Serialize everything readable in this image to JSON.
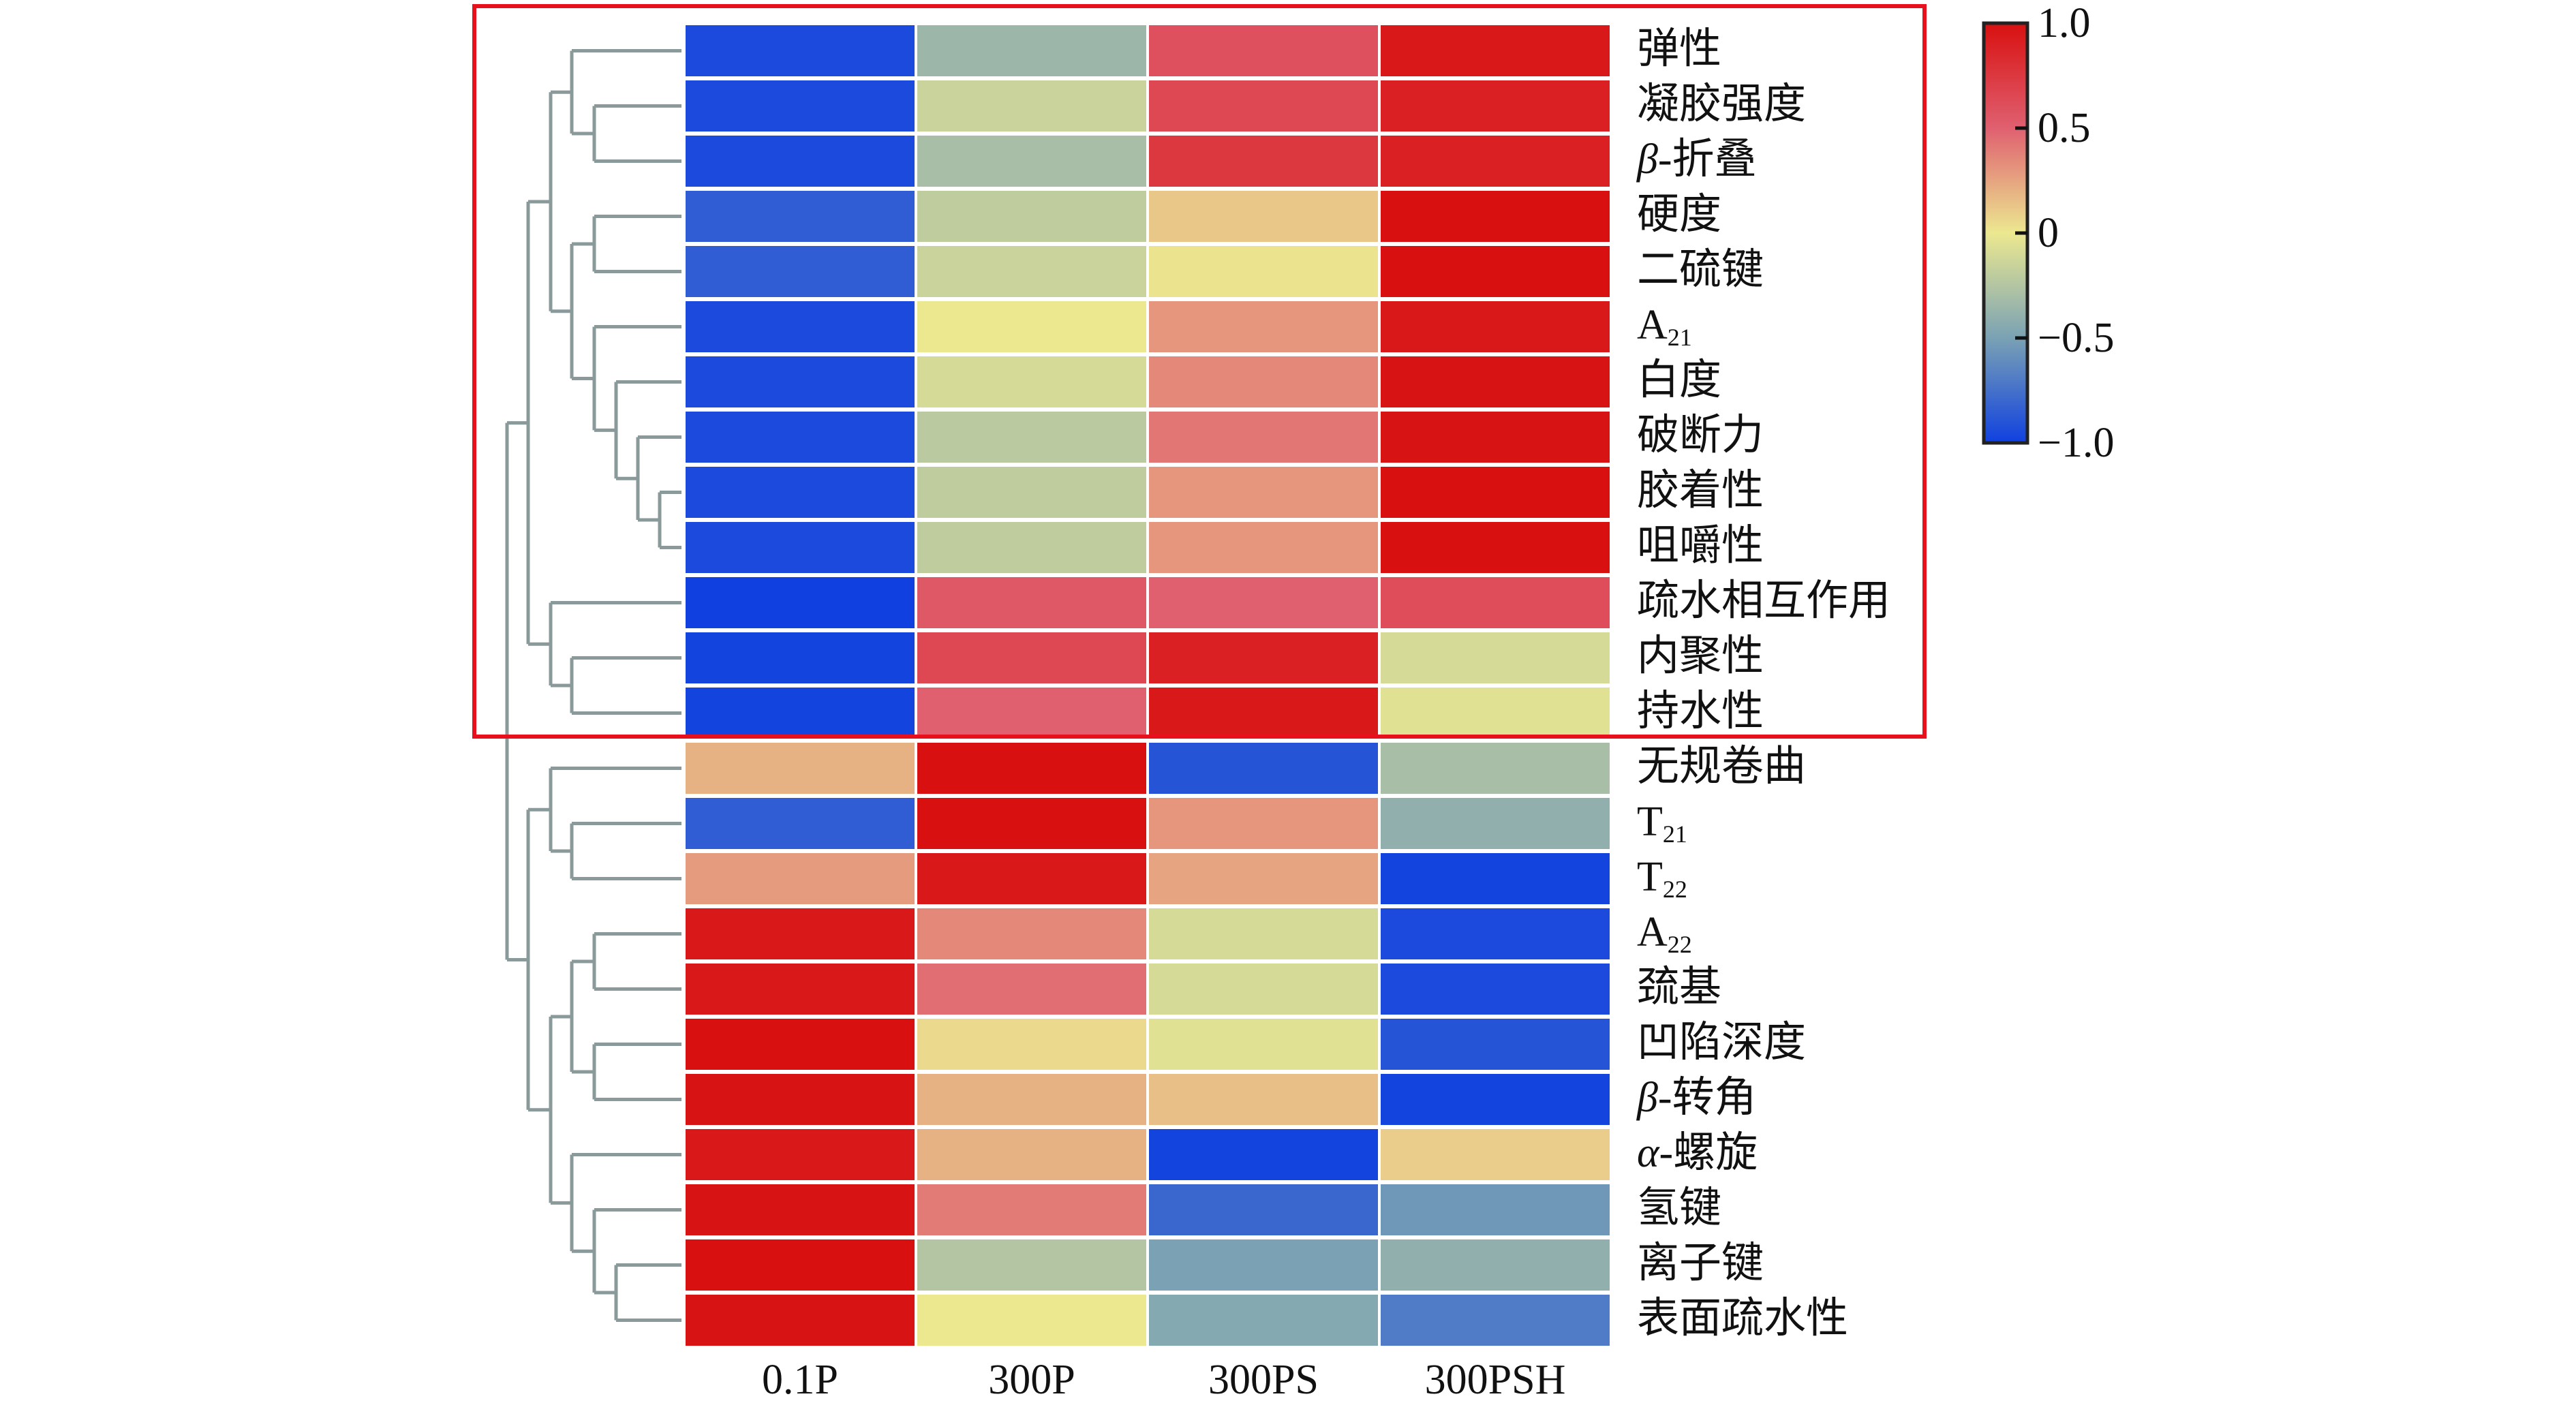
{
  "chart_data": {
    "type": "heatmap",
    "title": "",
    "columns": [
      "0.1P",
      "300P",
      "300PS",
      "300PSH"
    ],
    "rows": [
      {
        "label": "弹性",
        "values": [
          -0.95,
          -0.35,
          0.6,
          0.95
        ]
      },
      {
        "label": "凝胶强度",
        "values": [
          -0.95,
          -0.15,
          0.65,
          0.9
        ]
      },
      {
        "italic_prefix": "β",
        "label": "-折叠",
        "values": [
          -0.95,
          -0.3,
          0.75,
          0.9
        ]
      },
      {
        "label": "硬度",
        "values": [
          -0.85,
          -0.2,
          0.12,
          1.0
        ]
      },
      {
        "label": "二硫键",
        "values": [
          -0.85,
          -0.15,
          0.02,
          1.0
        ]
      },
      {
        "label": "A",
        "sub": "21",
        "values": [
          -0.95,
          0.0,
          0.3,
          0.95
        ]
      },
      {
        "label": "白度",
        "values": [
          -0.95,
          -0.1,
          0.35,
          0.98
        ]
      },
      {
        "label": "破断力",
        "values": [
          -0.95,
          -0.22,
          0.42,
          0.98
        ]
      },
      {
        "label": "胶着性",
        "values": [
          -0.95,
          -0.2,
          0.3,
          1.0
        ]
      },
      {
        "label": "咀嚼性",
        "values": [
          -0.95,
          -0.2,
          0.3,
          1.0
        ]
      },
      {
        "label": "疏水相互作用",
        "values": [
          -1.0,
          0.55,
          0.5,
          0.62
        ]
      },
      {
        "label": "内聚性",
        "values": [
          -0.98,
          0.65,
          0.9,
          -0.1
        ]
      },
      {
        "label": "持水性",
        "values": [
          -0.98,
          0.5,
          0.95,
          -0.05
        ]
      },
      {
        "label": "无规卷曲",
        "values": [
          0.2,
          1.0,
          -0.9,
          -0.3
        ]
      },
      {
        "label": "T",
        "sub": "21",
        "values": [
          -0.85,
          1.0,
          0.3,
          -0.4
        ]
      },
      {
        "label": "T",
        "sub": "22",
        "values": [
          0.28,
          0.95,
          0.25,
          -0.98
        ]
      },
      {
        "label": "A",
        "sub": "22",
        "values": [
          0.95,
          0.35,
          -0.1,
          -0.95
        ]
      },
      {
        "label": "巯基",
        "values": [
          0.95,
          0.45,
          -0.1,
          -0.95
        ]
      },
      {
        "label": "凹陷深度",
        "values": [
          1.0,
          0.05,
          -0.05,
          -0.9
        ]
      },
      {
        "italic_prefix": "β",
        "label": "-转角",
        "values": [
          0.98,
          0.2,
          0.15,
          -0.98
        ]
      },
      {
        "italic_prefix": "α",
        "label": "-螺旋",
        "values": [
          0.95,
          0.2,
          -0.98,
          0.1
        ]
      },
      {
        "label": "氢键",
        "values": [
          0.98,
          0.4,
          -0.8,
          -0.55
        ]
      },
      {
        "label": "离子键",
        "values": [
          1.0,
          -0.25,
          -0.5,
          -0.4
        ]
      },
      {
        "label": "表面疏水性",
        "values": [
          0.98,
          0.0,
          -0.45,
          -0.7
        ]
      }
    ],
    "colorbar": {
      "range": [
        -1.0,
        1.0
      ],
      "ticks": [
        "1.0",
        "0.5",
        "0",
        "−0.5",
        "−1.0"
      ],
      "tick_values": [
        1.0,
        0.5,
        0,
        -0.5,
        -1.0
      ],
      "colors": {
        "-1": "#1040e0",
        "-0.5": "#7aa2b4",
        "0": "#ece890",
        "0.5": "#e06070",
        "1": "#d81010"
      }
    },
    "dendrogram": "rows clustered; highlighted cluster = rows 1-13",
    "highlight_color": "#e8101c",
    "dendrogram_color": "#8a9a9a"
  }
}
